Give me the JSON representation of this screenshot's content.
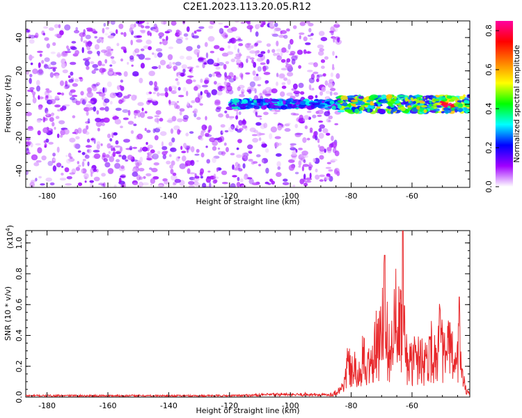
{
  "title": "C2E1.2023.113.20.05.R12",
  "chart_data": [
    {
      "type": "heatmap",
      "name": "spectrogram",
      "xlabel": "Height of straight line (km)",
      "ylabel": "Frequency (Hz)",
      "xlim": [
        -187,
        -41
      ],
      "ylim": [
        -50,
        50
      ],
      "x_ticks": [
        -180,
        -160,
        -140,
        -120,
        -100,
        -80,
        -60
      ],
      "y_ticks": [
        -40,
        -20,
        0,
        20,
        40
      ],
      "colorbar": {
        "label": "Normalized spectral amplitude",
        "range": [
          0,
          0.85
        ],
        "ticks": [
          0.0,
          0.2,
          0.4,
          0.6,
          0.8
        ],
        "colors": [
          "#ffffff",
          "#a000ff",
          "#0000ff",
          "#00ffff",
          "#00ff00",
          "#ffff00",
          "#ff8000",
          "#ff0000",
          "#ff00a0"
        ]
      },
      "features": {
        "noise_region_x": [
          -187,
          -84
        ],
        "noise_amplitude": 0.1,
        "signal_band_x": [
          -120,
          -41
        ],
        "signal_band_freq_hz": [
          -5,
          5
        ],
        "peak_amplitude": 0.85,
        "peak_x": -48
      }
    },
    {
      "type": "line",
      "name": "snr",
      "xlabel": "Height of straight line (km)",
      "ylabel": "SNR (10 * v/v)",
      "multiplier_label": "(x10",
      "multiplier_exp": "4",
      "xlim": [
        -187,
        -41
      ],
      "ylim": [
        0,
        1.08
      ],
      "x_ticks": [
        -180,
        -160,
        -140,
        -120,
        -100,
        -80,
        -60
      ],
      "y_ticks": [
        0.0,
        0.2,
        0.4,
        0.6,
        0.8,
        1.0
      ],
      "y_tick_labels": [
        "0.0",
        "0.2",
        "0.4",
        "0.6",
        "0.8",
        "1.0"
      ],
      "color": "#e8282b",
      "series": [
        {
          "x": [
            -187,
            -180,
            -170,
            -160,
            -150,
            -140,
            -130,
            -120,
            -110,
            -102,
            -100,
            -95,
            -90,
            -86,
            -84,
            -82,
            -81,
            -80,
            -79,
            -78,
            -77,
            -76,
            -75,
            -74,
            -73,
            -72,
            -71,
            -70,
            -69.5,
            -69,
            -68.5,
            -68,
            -67,
            -66,
            -65.5,
            -65,
            -64,
            -63.5,
            -63,
            -62.5,
            -62,
            -61,
            -60,
            -59,
            -58,
            -57,
            -56,
            -55,
            -54,
            -53,
            -52,
            -51,
            -50,
            -49,
            -48,
            -47,
            -46,
            -45,
            -44.5,
            -44,
            -43,
            -42,
            -41
          ],
          "y": [
            0.01,
            0.01,
            0.01,
            0.01,
            0.01,
            0.01,
            0.01,
            0.01,
            0.015,
            0.02,
            0.015,
            0.02,
            0.015,
            0.02,
            0.05,
            0.15,
            0.35,
            0.2,
            0.3,
            0.15,
            0.25,
            0.4,
            0.2,
            0.35,
            0.3,
            0.5,
            0.45,
            0.8,
            0.92,
            0.7,
            0.75,
            0.5,
            0.4,
            0.6,
            0.85,
            0.5,
            0.7,
            0.6,
            1.08,
            0.55,
            0.4,
            0.35,
            0.3,
            0.4,
            0.35,
            0.45,
            0.3,
            0.4,
            0.5,
            0.35,
            0.45,
            0.55,
            0.45,
            0.35,
            0.5,
            0.4,
            0.3,
            0.35,
            0.65,
            0.3,
            0.15,
            0.05,
            0.02
          ]
        }
      ]
    }
  ]
}
